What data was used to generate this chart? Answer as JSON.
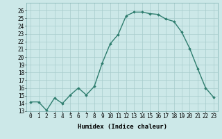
{
  "x": [
    0,
    1,
    2,
    3,
    4,
    5,
    6,
    7,
    8,
    9,
    10,
    11,
    12,
    13,
    14,
    15,
    16,
    17,
    18,
    19,
    20,
    21,
    22,
    23
  ],
  "y": [
    14.2,
    14.2,
    13.1,
    14.7,
    14.0,
    15.1,
    16.0,
    15.1,
    16.2,
    19.2,
    21.7,
    22.9,
    25.3,
    25.8,
    25.8,
    25.6,
    25.5,
    24.9,
    24.6,
    23.2,
    21.1,
    18.5,
    16.0,
    14.8
  ],
  "line_color": "#2e7d6e",
  "marker": "D",
  "marker_size": 1.8,
  "line_width": 1.0,
  "bg_color": "#cce8e8",
  "grid_color": "#a8cccc",
  "xlabel": "Humidex (Indice chaleur)",
  "ylim": [
    13,
    27
  ],
  "xlim": [
    -0.5,
    23.5
  ],
  "yticks": [
    13,
    14,
    15,
    16,
    17,
    18,
    19,
    20,
    21,
    22,
    23,
    24,
    25,
    26
  ],
  "xticks": [
    0,
    1,
    2,
    3,
    4,
    5,
    6,
    7,
    8,
    9,
    10,
    11,
    12,
    13,
    14,
    15,
    16,
    17,
    18,
    19,
    20,
    21,
    22,
    23
  ],
  "tick_fontsize": 5.5,
  "xlabel_fontsize": 6.5
}
